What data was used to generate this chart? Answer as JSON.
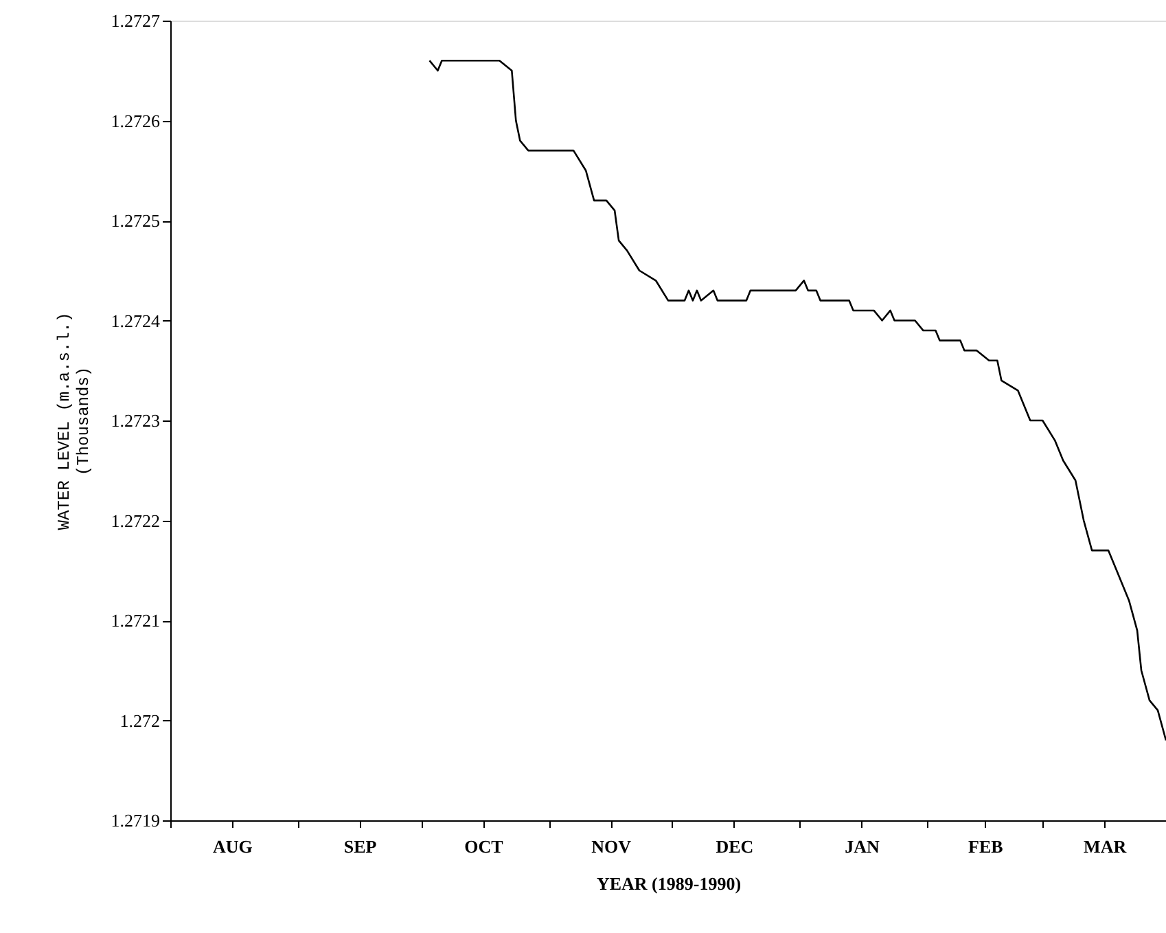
{
  "chart_data": {
    "type": "line",
    "xlabel": "YEAR (1989-1990)",
    "ylabel": "WATER LEVEL (m.a.s.l.)\n(Thousands)",
    "xlim": [
      "1989-08-01",
      "1990-03-31"
    ],
    "xticks": [
      {
        "value": "1989-08-01",
        "label": null
      },
      {
        "value": "1989-08-16",
        "label": "AUG"
      },
      {
        "value": "1989-09-01",
        "label": null
      },
      {
        "value": "1989-09-16",
        "label": "SEP"
      },
      {
        "value": "1989-10-01",
        "label": null
      },
      {
        "value": "1989-10-16",
        "label": "OCT"
      },
      {
        "value": "1989-11-01",
        "label": null
      },
      {
        "value": "1989-11-16",
        "label": "NOV"
      },
      {
        "value": "1989-12-01",
        "label": null
      },
      {
        "value": "1989-12-16",
        "label": "DEC"
      },
      {
        "value": "1990-01-01",
        "label": null
      },
      {
        "value": "1990-01-16",
        "label": "JAN"
      },
      {
        "value": "1990-02-01",
        "label": null
      },
      {
        "value": "1990-02-15",
        "label": "FEB"
      },
      {
        "value": "1990-03-01",
        "label": null
      },
      {
        "value": "1990-03-16",
        "label": "MAR"
      }
    ],
    "ylim": [
      1.2719,
      1.2727
    ],
    "yticks": [
      1.2719,
      1.272,
      1.2721,
      1.2722,
      1.2723,
      1.2724,
      1.2725,
      1.2726,
      1.2727
    ],
    "grid": false,
    "marker": "none",
    "line_style": "solid",
    "series": [
      {
        "color": "#000000",
        "x": [
          "1989-10-03",
          "1989-10-05",
          "1989-10-06",
          "1989-10-20",
          "1989-10-23",
          "1989-10-24",
          "1989-10-25",
          "1989-10-27",
          "1989-11-07",
          "1989-11-10",
          "1989-11-12",
          "1989-11-15",
          "1989-11-17",
          "1989-11-18",
          "1989-11-20",
          "1989-11-23",
          "1989-11-27",
          "1989-11-30",
          "1989-12-04",
          "1989-12-05",
          "1989-12-06",
          "1989-12-07",
          "1989-12-08",
          "1989-12-11",
          "1989-12-12",
          "1989-12-19",
          "1989-12-20",
          "1989-12-31",
          "1990-01-02",
          "1990-01-03",
          "1990-01-05",
          "1990-01-06",
          "1990-01-13",
          "1990-01-14",
          "1990-01-19",
          "1990-01-21",
          "1990-01-23",
          "1990-01-24",
          "1990-01-29",
          "1990-01-31",
          "1990-02-03",
          "1990-02-04",
          "1990-02-09",
          "1990-02-10",
          "1990-02-13",
          "1990-02-16",
          "1990-02-18",
          "1990-02-19",
          "1990-02-23",
          "1990-02-26",
          "1990-03-01",
          "1990-03-04",
          "1990-03-06",
          "1990-03-09",
          "1990-03-11",
          "1990-03-13",
          "1990-03-17",
          "1990-03-19",
          "1990-03-22",
          "1990-03-24",
          "1990-03-25",
          "1990-03-27",
          "1990-03-29",
          "1990-03-31"
        ],
        "values": [
          1.27266,
          1.27265,
          1.27266,
          1.27266,
          1.27265,
          1.2726,
          1.27258,
          1.27257,
          1.27257,
          1.27255,
          1.27252,
          1.27252,
          1.27251,
          1.27248,
          1.27247,
          1.27245,
          1.27244,
          1.27242,
          1.27242,
          1.27243,
          1.27242,
          1.27243,
          1.27242,
          1.27243,
          1.27242,
          1.27242,
          1.27243,
          1.27243,
          1.27244,
          1.27243,
          1.27243,
          1.27242,
          1.27242,
          1.27241,
          1.27241,
          1.2724,
          1.27241,
          1.2724,
          1.2724,
          1.27239,
          1.27239,
          1.27238,
          1.27238,
          1.27237,
          1.27237,
          1.27236,
          1.27236,
          1.27234,
          1.27233,
          1.2723,
          1.2723,
          1.27228,
          1.27226,
          1.27224,
          1.2722,
          1.27217,
          1.27217,
          1.27215,
          1.27212,
          1.27209,
          1.27205,
          1.27202,
          1.27201,
          1.27198
        ]
      }
    ]
  }
}
